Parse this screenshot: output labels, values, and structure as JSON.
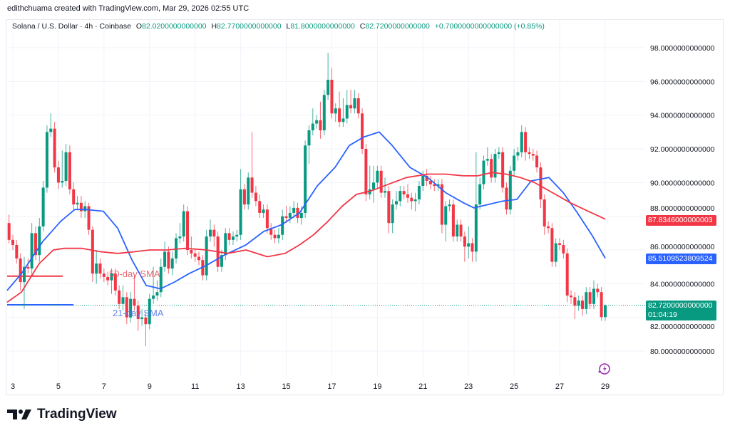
{
  "credit": "edithchuama created with TradingView.com, Mar 29, 2026 02:55 UTC",
  "legend": {
    "symbol": "Solana / U.S. Dollar · 4h · Coinbase",
    "o_label": "O",
    "o": "82.0200000000000",
    "h_label": "H",
    "h": "82.7700000000000",
    "l_label": "L",
    "l": "81.8000000000000",
    "c_label": "C",
    "c": "82.7200000000000",
    "change": "+0.7000000000000000 (+0.85%)"
  },
  "colors": {
    "up": "#089981",
    "down": "#F23645",
    "sma21": "#2962FF",
    "sma50": "#F23645"
  },
  "price_tags": {
    "sma50": "87.8346000000003",
    "sma21": "85.5109523809524",
    "last": "82.7200000000000",
    "countdown": "01:04:19"
  },
  "annotations": {
    "sma50_label": "50-day SMA",
    "sma21_label": "21-day SMA"
  },
  "logo": {
    "text": "TradingView"
  },
  "icons": {
    "alert": "lightning-icon"
  },
  "chart_data": {
    "type": "candlestick",
    "interval": "4h",
    "last_candle_day": 29,
    "ylim": [
      80,
      98
    ],
    "xlim_days": [
      2.75,
      29
    ],
    "grid": true,
    "y_ticks": [
      "98.0000000000000",
      "96.0000000000000",
      "94.0000000000000",
      "92.0000000000000",
      "90.0000000000000",
      "88.0000000000000",
      "86.0000000000000",
      "84.0000000000000",
      "82.0000000000000",
      "80.0000000000000"
    ],
    "y_tick_values": [
      98,
      96,
      94,
      92,
      90,
      88,
      86,
      84,
      82,
      80
    ],
    "x_ticks": [
      "3",
      "5",
      "7",
      "9",
      "11",
      "13",
      "15",
      "17",
      "19",
      "21",
      "23",
      "25",
      "27",
      "29"
    ],
    "x_tick_values": [
      3,
      5,
      7,
      9,
      11,
      13,
      15,
      17,
      19,
      21,
      23,
      25,
      27,
      29
    ],
    "last_price": 82.72,
    "candles": [
      [
        87.6,
        88.1,
        86.4,
        86.6
      ],
      [
        86.6,
        86.9,
        86.0,
        86.3
      ],
      [
        86.3,
        86.6,
        85.2,
        85.5
      ],
      [
        85.5,
        85.8,
        83.6,
        84.1
      ],
      [
        84.1,
        85.6,
        82.5,
        85.0
      ],
      [
        85.0,
        85.5,
        84.6,
        84.9
      ],
      [
        84.9,
        87.6,
        84.5,
        87.0
      ],
      [
        87.0,
        87.4,
        85.4,
        85.7
      ],
      [
        85.7,
        87.9,
        85.3,
        87.4
      ],
      [
        87.4,
        90.1,
        87.1,
        89.7
      ],
      [
        89.7,
        93.4,
        89.4,
        93.0
      ],
      [
        93.0,
        94.1,
        92.7,
        93.2
      ],
      [
        93.2,
        93.6,
        90.6,
        90.9
      ],
      [
        90.9,
        91.3,
        89.6,
        90.0
      ],
      [
        90.0,
        91.9,
        89.7,
        90.1
      ],
      [
        90.1,
        92.3,
        89.8,
        91.8
      ],
      [
        91.8,
        92.2,
        89.3,
        89.6
      ],
      [
        89.6,
        90.0,
        88.3,
        88.7
      ],
      [
        88.7,
        89.2,
        88.4,
        88.8
      ],
      [
        88.8,
        89.2,
        87.9,
        88.3
      ],
      [
        88.3,
        88.9,
        87.9,
        88.6
      ],
      [
        88.6,
        88.8,
        86.9,
        87.2
      ],
      [
        87.2,
        87.4,
        84.1,
        84.6
      ],
      [
        84.6,
        86.0,
        84.0,
        85.2
      ],
      [
        85.2,
        85.5,
        84.3,
        84.6
      ],
      [
        84.6,
        84.9,
        84.1,
        84.4
      ],
      [
        84.4,
        84.7,
        83.9,
        84.2
      ],
      [
        84.2,
        84.9,
        83.4,
        84.6
      ],
      [
        84.6,
        84.9,
        83.3,
        83.6
      ],
      [
        83.6,
        83.9,
        82.5,
        82.8
      ],
      [
        82.8,
        83.9,
        82.4,
        83.2
      ],
      [
        83.2,
        83.5,
        81.6,
        82.0
      ],
      [
        82.0,
        83.5,
        81.7,
        83.1
      ],
      [
        83.1,
        84.5,
        82.4,
        82.7
      ],
      [
        82.7,
        83.0,
        81.2,
        81.9
      ],
      [
        81.9,
        82.5,
        81.5,
        82.0
      ],
      [
        82.0,
        82.3,
        80.3,
        81.6
      ],
      [
        81.6,
        83.4,
        81.3,
        83.1
      ],
      [
        83.1,
        85.0,
        82.8,
        83.3
      ],
      [
        83.3,
        84.2,
        83.0,
        83.5
      ],
      [
        83.5,
        85.5,
        83.2,
        85.0
      ],
      [
        85.0,
        86.5,
        84.7,
        85.9
      ],
      [
        85.9,
        86.2,
        84.6,
        84.9
      ],
      [
        84.9,
        85.9,
        84.5,
        85.5
      ],
      [
        85.5,
        87.0,
        85.2,
        86.7
      ],
      [
        86.7,
        87.6,
        86.4,
        86.8
      ],
      [
        86.8,
        88.7,
        86.5,
        88.3
      ],
      [
        88.3,
        88.6,
        85.7,
        86.0
      ],
      [
        86.0,
        86.8,
        85.5,
        85.8
      ],
      [
        85.8,
        86.1,
        85.3,
        85.6
      ],
      [
        85.6,
        85.9,
        85.1,
        85.4
      ],
      [
        85.4,
        85.7,
        84.2,
        84.5
      ],
      [
        84.5,
        87.2,
        84.2,
        86.8
      ],
      [
        86.8,
        87.8,
        86.5,
        87.2
      ],
      [
        87.2,
        87.5,
        86.2,
        86.8
      ],
      [
        86.8,
        87.1,
        84.7,
        85.0
      ],
      [
        85.0,
        86.0,
        84.7,
        85.7
      ],
      [
        85.7,
        87.3,
        85.4,
        87.0
      ],
      [
        87.0,
        87.3,
        86.3,
        86.6
      ],
      [
        86.6,
        87.1,
        86.3,
        86.8
      ],
      [
        86.8,
        87.2,
        86.5,
        86.9
      ],
      [
        86.9,
        90.8,
        86.6,
        89.6
      ],
      [
        89.6,
        89.9,
        88.4,
        88.7
      ],
      [
        88.7,
        90.6,
        88.4,
        90.3
      ],
      [
        90.3,
        93.0,
        89.1,
        89.4
      ],
      [
        89.4,
        89.8,
        88.6,
        88.9
      ],
      [
        88.9,
        89.3,
        87.9,
        88.2
      ],
      [
        88.2,
        88.7,
        87.9,
        88.4
      ],
      [
        88.4,
        88.7,
        87.0,
        87.3
      ],
      [
        87.3,
        87.6,
        86.6,
        86.9
      ],
      [
        86.9,
        87.2,
        86.4,
        86.7
      ],
      [
        86.7,
        87.3,
        86.4,
        86.9
      ],
      [
        86.9,
        88.4,
        86.6,
        88.0
      ],
      [
        88.0,
        88.6,
        87.6,
        87.9
      ],
      [
        87.9,
        88.6,
        87.6,
        88.2
      ],
      [
        88.2,
        88.9,
        87.9,
        88.5
      ],
      [
        88.5,
        88.8,
        87.6,
        87.9
      ],
      [
        87.9,
        88.6,
        87.5,
        88.2
      ],
      [
        88.2,
        92.5,
        87.9,
        92.2
      ],
      [
        92.2,
        93.4,
        91.1,
        93.1
      ],
      [
        93.1,
        94.4,
        92.8,
        93.5
      ],
      [
        93.5,
        94.0,
        93.2,
        93.7
      ],
      [
        93.7,
        94.8,
        92.6,
        93.1
      ],
      [
        93.1,
        95.5,
        92.8,
        95.2
      ],
      [
        95.2,
        97.7,
        94.9,
        96.1
      ],
      [
        96.1,
        96.8,
        93.8,
        94.1
      ],
      [
        94.1,
        94.7,
        93.6,
        94.4
      ],
      [
        94.4,
        95.4,
        93.3,
        93.6
      ],
      [
        93.6,
        95.0,
        93.3,
        93.8
      ],
      [
        93.8,
        95.5,
        93.5,
        94.6
      ],
      [
        94.6,
        95.5,
        94.1,
        94.4
      ],
      [
        94.4,
        95.5,
        94.1,
        95.0
      ],
      [
        95.0,
        95.3,
        93.8,
        94.1
      ],
      [
        94.1,
        94.4,
        91.7,
        92.0
      ],
      [
        92.0,
        92.3,
        88.9,
        89.3
      ],
      [
        89.3,
        91.0,
        89.0,
        89.6
      ],
      [
        89.6,
        91.0,
        88.8,
        90.0
      ],
      [
        90.0,
        91.0,
        89.7,
        90.7
      ],
      [
        90.7,
        91.0,
        89.1,
        89.4
      ],
      [
        89.4,
        90.3,
        89.1,
        89.5
      ],
      [
        89.5,
        89.8,
        87.0,
        87.6
      ],
      [
        87.6,
        89.0,
        87.0,
        88.7
      ],
      [
        88.7,
        89.5,
        88.4,
        88.9
      ],
      [
        88.9,
        89.8,
        88.6,
        89.5
      ],
      [
        89.5,
        89.8,
        89.0,
        89.3
      ],
      [
        89.3,
        89.9,
        88.8,
        89.1
      ],
      [
        89.1,
        89.4,
        88.4,
        88.9
      ],
      [
        88.9,
        89.4,
        88.3,
        89.0
      ],
      [
        89.0,
        90.1,
        88.7,
        89.8
      ],
      [
        89.8,
        90.7,
        89.5,
        90.4
      ],
      [
        90.4,
        90.8,
        89.8,
        90.1
      ],
      [
        90.1,
        90.4,
        89.6,
        89.9
      ],
      [
        89.9,
        90.2,
        89.5,
        89.8
      ],
      [
        89.8,
        90.2,
        89.5,
        89.9
      ],
      [
        89.9,
        90.2,
        87.0,
        87.5
      ],
      [
        87.5,
        88.9,
        86.5,
        88.6
      ],
      [
        88.6,
        89.0,
        88.3,
        88.7
      ],
      [
        88.7,
        89.0,
        86.5,
        86.8
      ],
      [
        86.8,
        87.8,
        86.5,
        87.5
      ],
      [
        87.5,
        87.8,
        86.5,
        86.8
      ],
      [
        86.8,
        87.1,
        85.3,
        86.2
      ],
      [
        86.2,
        87.4,
        85.5,
        86.4
      ],
      [
        86.4,
        86.7,
        85.3,
        85.9
      ],
      [
        85.9,
        91.8,
        85.3,
        88.7
      ],
      [
        88.7,
        90.3,
        88.4,
        89.9
      ],
      [
        89.9,
        91.6,
        89.6,
        91.3
      ],
      [
        91.3,
        92.1,
        91.0,
        91.4
      ],
      [
        91.4,
        91.7,
        90.0,
        90.3
      ],
      [
        90.3,
        92.0,
        90.0,
        91.7
      ],
      [
        91.7,
        92.1,
        91.4,
        91.8
      ],
      [
        91.8,
        92.1,
        89.4,
        89.7
      ],
      [
        89.7,
        90.0,
        88.1,
        88.4
      ],
      [
        88.4,
        91.0,
        88.1,
        90.7
      ],
      [
        90.7,
        92.0,
        90.4,
        91.6
      ],
      [
        91.6,
        92.1,
        91.3,
        91.8
      ],
      [
        91.8,
        93.4,
        91.5,
        93.0
      ],
      [
        93.0,
        93.3,
        91.3,
        91.8
      ],
      [
        91.8,
        92.1,
        91.4,
        91.7
      ],
      [
        91.7,
        92.0,
        91.3,
        91.6
      ],
      [
        91.6,
        91.9,
        90.6,
        90.9
      ],
      [
        90.9,
        91.2,
        88.5,
        89.0
      ],
      [
        89.0,
        89.3,
        86.9,
        87.4
      ],
      [
        87.4,
        87.7,
        87.0,
        87.3
      ],
      [
        87.3,
        87.6,
        85.0,
        85.3
      ],
      [
        85.3,
        86.7,
        85.0,
        86.4
      ],
      [
        86.4,
        86.7,
        86.0,
        86.3
      ],
      [
        86.3,
        86.6,
        85.5,
        85.8
      ],
      [
        85.8,
        86.1,
        82.9,
        83.3
      ],
      [
        83.3,
        83.6,
        82.8,
        83.2
      ],
      [
        83.2,
        83.5,
        81.9,
        82.7
      ],
      [
        82.7,
        83.3,
        82.4,
        83.0
      ],
      [
        83.0,
        83.3,
        82.1,
        82.5
      ],
      [
        82.5,
        83.8,
        82.2,
        83.5
      ],
      [
        83.5,
        83.8,
        82.5,
        82.8
      ],
      [
        82.8,
        84.2,
        82.5,
        83.7
      ],
      [
        83.7,
        84.0,
        83.2,
        83.5
      ],
      [
        83.5,
        83.8,
        81.8,
        82.02
      ],
      [
        82.02,
        82.77,
        81.8,
        82.72
      ]
    ],
    "series": [
      {
        "name": "21-day SMA",
        "color": "#2962FF",
        "points": [
          [
            2.75,
            83.6
          ],
          [
            3.38,
            84.6
          ],
          [
            4.31,
            86.5
          ],
          [
            5.1,
            87.7
          ],
          [
            5.72,
            88.4
          ],
          [
            6.19,
            88.4
          ],
          [
            6.97,
            88.3
          ],
          [
            7.6,
            87.3
          ],
          [
            8.23,
            85.4
          ],
          [
            8.85,
            83.9
          ],
          [
            9.48,
            83.7
          ],
          [
            10.1,
            84.1
          ],
          [
            10.73,
            84.6
          ],
          [
            11.51,
            85.1
          ],
          [
            12.29,
            85.7
          ],
          [
            13.23,
            86.3
          ],
          [
            14.01,
            87.1
          ],
          [
            14.8,
            87.5
          ],
          [
            15.58,
            88.2
          ],
          [
            16.36,
            89.8
          ],
          [
            17.14,
            90.9
          ],
          [
            17.77,
            92.2
          ],
          [
            18.39,
            92.7
          ],
          [
            19.08,
            93.0
          ],
          [
            19.65,
            92.2
          ],
          [
            20.43,
            90.9
          ],
          [
            21.21,
            90.3
          ],
          [
            22.0,
            89.4
          ],
          [
            22.78,
            88.8
          ],
          [
            23.24,
            88.5
          ],
          [
            23.87,
            88.7
          ],
          [
            24.5,
            88.9
          ],
          [
            25.12,
            89.0
          ],
          [
            25.75,
            90.1
          ],
          [
            26.53,
            90.3
          ],
          [
            27.16,
            89.4
          ],
          [
            27.78,
            88.2
          ],
          [
            28.41,
            86.9
          ],
          [
            29.0,
            85.51
          ]
        ]
      },
      {
        "name": "50-day SMA",
        "color": "#F23645",
        "points": [
          [
            2.75,
            82.9
          ],
          [
            3.38,
            83.5
          ],
          [
            4.16,
            85.2
          ],
          [
            4.78,
            86.0
          ],
          [
            5.25,
            86.1
          ],
          [
            6.04,
            86.1
          ],
          [
            6.82,
            85.9
          ],
          [
            7.6,
            85.8
          ],
          [
            8.38,
            85.9
          ],
          [
            9.01,
            86.0
          ],
          [
            9.79,
            86.0
          ],
          [
            10.57,
            86.1
          ],
          [
            11.51,
            86.0
          ],
          [
            12.45,
            85.8
          ],
          [
            13.23,
            86.0
          ],
          [
            14.17,
            85.6
          ],
          [
            14.95,
            85.8
          ],
          [
            15.58,
            86.3
          ],
          [
            16.2,
            86.9
          ],
          [
            16.83,
            87.7
          ],
          [
            17.46,
            88.6
          ],
          [
            18.08,
            89.3
          ],
          [
            18.71,
            89.5
          ],
          [
            19.49,
            89.9
          ],
          [
            20.27,
            90.3
          ],
          [
            21.21,
            90.5
          ],
          [
            22.0,
            90.5
          ],
          [
            22.78,
            90.4
          ],
          [
            23.4,
            90.4
          ],
          [
            24.03,
            90.6
          ],
          [
            24.65,
            90.5
          ],
          [
            25.28,
            90.3
          ],
          [
            25.9,
            90.0
          ],
          [
            26.69,
            89.4
          ],
          [
            27.47,
            88.8
          ],
          [
            28.25,
            88.3
          ],
          [
            29.0,
            87.83
          ]
        ]
      }
    ],
    "drawings": [
      {
        "type": "horizontal-segment",
        "color": "#F23645",
        "price": 84.45,
        "from_day": 2.75,
        "to_day": 5.19
      },
      {
        "type": "horizontal-segment",
        "color": "#2962FF",
        "price": 82.75,
        "from_day": 2.75,
        "to_day": 5.66
      }
    ]
  }
}
